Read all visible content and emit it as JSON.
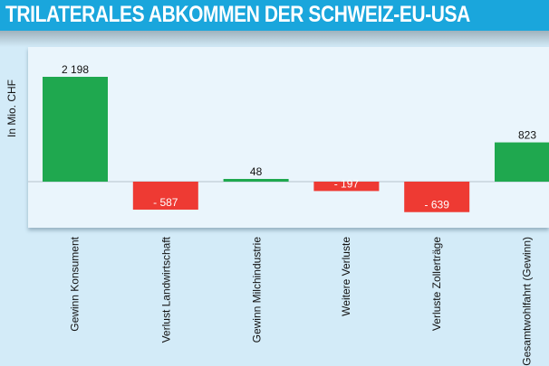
{
  "header": {
    "title": "TRILATERALES ABKOMMEN DER SCHWEIZ-EU-USA"
  },
  "chart_data": {
    "type": "bar",
    "title": "TRILATERALES ABKOMMEN DER SCHWEIZ-EU-USA",
    "xlabel": "",
    "ylabel": "In Mio. CHF",
    "categories": [
      "Gewinn Konsument",
      "Verlust Landwirtschaft",
      "Gewinn Milchindustrie",
      "Weitere Verluste",
      "Verluste Zollerträge",
      "Gesamtwohlfahrt (Gewinn)"
    ],
    "values": [
      2198,
      -587,
      48,
      -197,
      -639,
      823
    ],
    "value_labels": [
      "2 198",
      "- 587",
      "48",
      "- 197",
      "- 639",
      "823"
    ],
    "ylim": [
      -900,
      2400
    ],
    "grid": false,
    "colors": {
      "positive": "#1fa84f",
      "negative": "#ee3a33",
      "baseline": "#b5c3cc"
    }
  }
}
